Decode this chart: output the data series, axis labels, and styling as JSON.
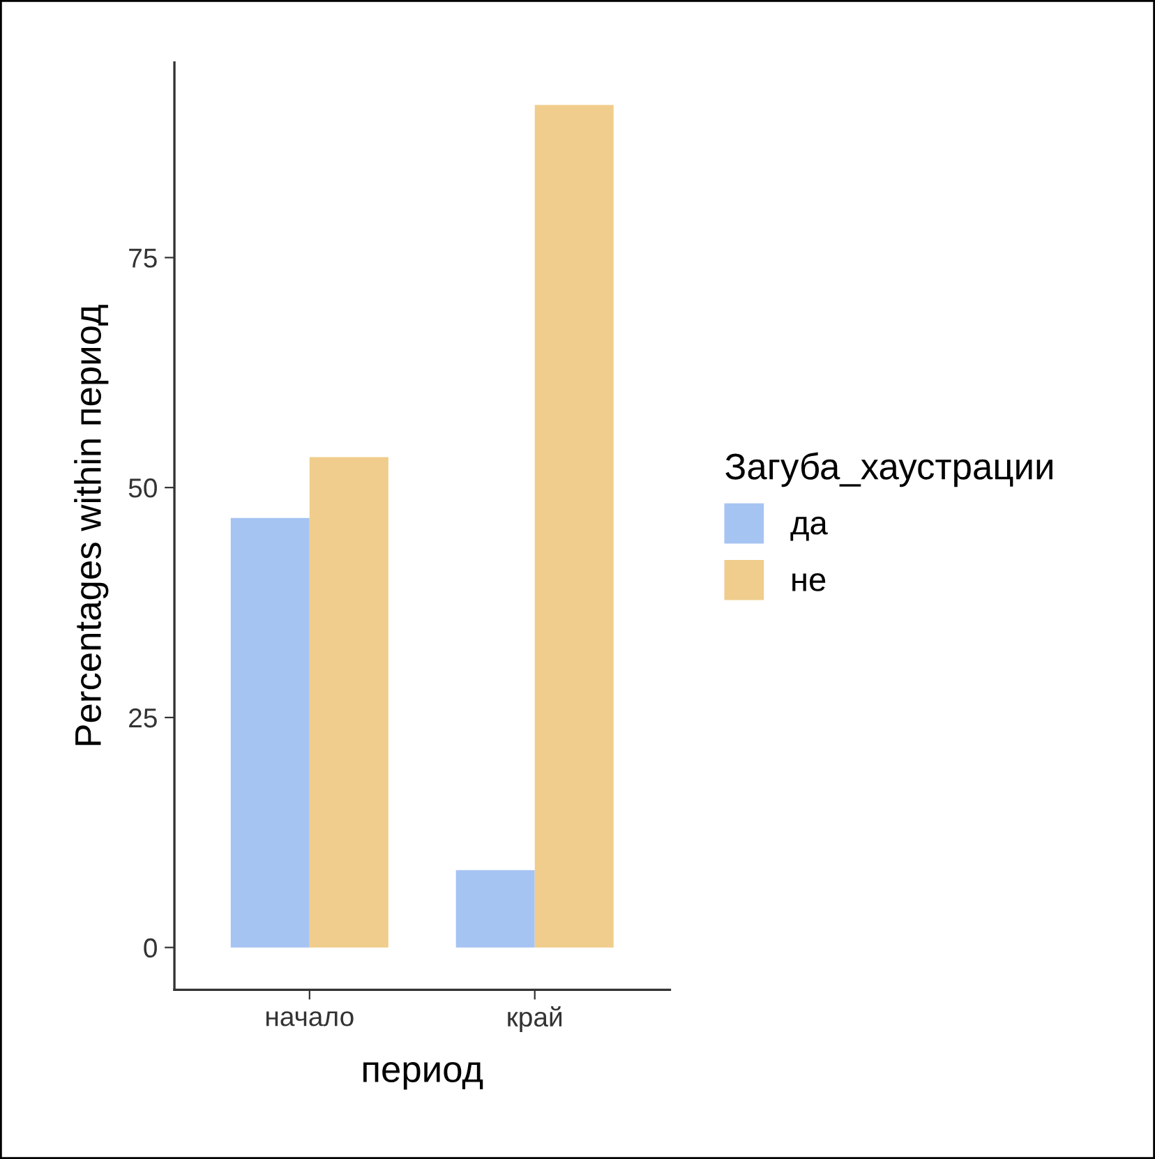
{
  "chart_data": {
    "type": "bar",
    "xlabel": "период",
    "ylabel": "Percentages within период",
    "legend_title": "Загуба_хаустрации",
    "categories": [
      "начало",
      "край"
    ],
    "series": [
      {
        "name": "да",
        "color": "#a6c4f2",
        "values": [
          46.7,
          8.4
        ]
      },
      {
        "name": "не",
        "color": "#f0cd8c",
        "values": [
          53.3,
          91.6
        ]
      }
    ],
    "ylim": [
      -4.6,
      96.2
    ],
    "yticks": [
      0,
      25,
      50,
      75
    ],
    "grid": false,
    "legend": "right"
  }
}
